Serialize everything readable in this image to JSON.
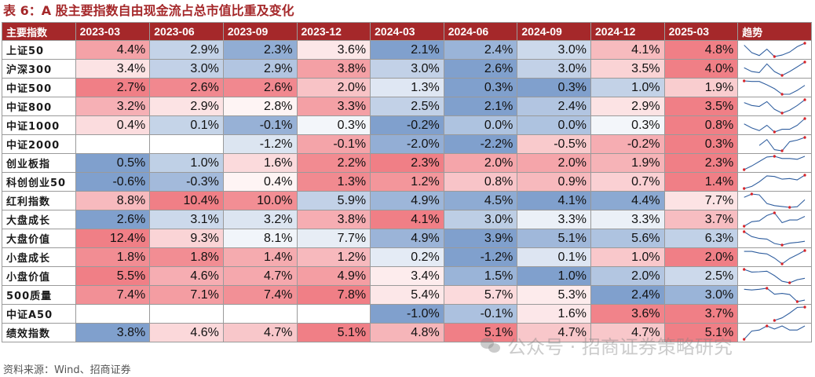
{
  "title": "表 6：A 股主要指数自由现金流占总市值比重及变化",
  "source": "资料来源：Wind、招商证券",
  "watermark": "公众号 · 招商证券策略研究",
  "watermark_icon": "wechat-icon",
  "colors": {
    "header_bg": "#a5282a",
    "positive": "#e9424c",
    "negative": "#2f64ae",
    "spark_line": "#2e5d9e",
    "spark_dot": "#d8242a"
  },
  "columns": [
    "主要指数",
    "2023-03",
    "2023-06",
    "2023-09",
    "2023-12",
    "2024-03",
    "2024-06",
    "2024-09",
    "2024-12",
    "2025-03",
    "趋势"
  ],
  "rows": [
    {
      "name": "上证50",
      "values": [
        4.4,
        2.9,
        2.3,
        3.6,
        2.1,
        2.4,
        3.0,
        4.1,
        4.8
      ],
      "labels": [
        "4.4%",
        "2.9%",
        "2.3%",
        "3.6%",
        "2.1%",
        "2.4%",
        "3.0%",
        "4.1%",
        "4.8%"
      ]
    },
    {
      "name": "沪深300",
      "values": [
        3.4,
        3.0,
        2.9,
        3.8,
        3.0,
        2.6,
        3.0,
        3.5,
        4.0
      ],
      "labels": [
        "3.4%",
        "3.0%",
        "2.9%",
        "3.8%",
        "3.0%",
        "2.6%",
        "3.0%",
        "3.5%",
        "4.0%"
      ]
    },
    {
      "name": "中证500",
      "values": [
        2.7,
        2.6,
        2.6,
        2.0,
        1.3,
        0.3,
        0.3,
        1.0,
        1.9
      ],
      "labels": [
        "2.7%",
        "2.6%",
        "2.6%",
        "2.0%",
        "1.3%",
        "0.3%",
        "0.3%",
        "1.0%",
        "1.9%"
      ]
    },
    {
      "name": "中证800",
      "values": [
        3.2,
        2.9,
        2.8,
        3.3,
        2.5,
        2.1,
        2.4,
        2.9,
        3.5
      ],
      "labels": [
        "3.2%",
        "2.9%",
        "2.8%",
        "3.3%",
        "2.5%",
        "2.1%",
        "2.4%",
        "2.9%",
        "3.5%"
      ]
    },
    {
      "name": "中证1000",
      "values": [
        0.4,
        0.1,
        -0.1,
        0.3,
        -0.2,
        0.0,
        0.0,
        0.3,
        0.8
      ],
      "labels": [
        "0.4%",
        "0.1%",
        "-0.1%",
        "0.3%",
        "-0.2%",
        "0.0%",
        "0.0%",
        "0.3%",
        "0.8%"
      ]
    },
    {
      "name": "中证2000",
      "values": [
        null,
        null,
        -1.2,
        -0.1,
        -2.0,
        -2.2,
        -0.5,
        -0.2,
        0.3
      ],
      "labels": [
        "",
        "",
        "-1.2%",
        "-0.1%",
        "-2.0%",
        "-2.2%",
        "-0.5%",
        "-0.2%",
        "0.3%"
      ]
    },
    {
      "name": "创业板指",
      "values": [
        0.5,
        1.0,
        1.6,
        2.2,
        2.3,
        2.0,
        2.0,
        1.9,
        2.3
      ],
      "labels": [
        "0.5%",
        "1.0%",
        "1.6%",
        "2.2%",
        "2.3%",
        "2.0%",
        "2.0%",
        "1.9%",
        "2.3%"
      ]
    },
    {
      "name": "科创创业50",
      "values": [
        -0.6,
        -0.3,
        0.4,
        1.3,
        1.2,
        0.8,
        0.9,
        0.7,
        1.4
      ],
      "labels": [
        "-0.6%",
        "-0.3%",
        "0.4%",
        "1.3%",
        "1.2%",
        "0.8%",
        "0.9%",
        "0.7%",
        "1.4%"
      ]
    },
    {
      "name": "红利指数",
      "values": [
        8.8,
        10.4,
        10.0,
        5.9,
        4.9,
        4.5,
        4.1,
        4.4,
        7.7
      ],
      "labels": [
        "8.8%",
        "10.4%",
        "10.0%",
        "5.9%",
        "4.9%",
        "4.5%",
        "4.1%",
        "4.4%",
        "7.7%"
      ]
    },
    {
      "name": "大盘成长",
      "values": [
        2.6,
        3.1,
        3.2,
        3.8,
        4.1,
        3.0,
        3.3,
        3.3,
        3.7
      ],
      "labels": [
        "2.6%",
        "3.1%",
        "3.2%",
        "3.8%",
        "4.1%",
        "3.0%",
        "3.3%",
        "3.3%",
        "3.7%"
      ]
    },
    {
      "name": "大盘价值",
      "values": [
        12.4,
        9.3,
        8.1,
        7.7,
        4.9,
        3.9,
        5.1,
        5.6,
        6.3
      ],
      "labels": [
        "12.4%",
        "9.3%",
        "8.1%",
        "7.7%",
        "4.9%",
        "3.9%",
        "5.1%",
        "5.6%",
        "6.3%"
      ]
    },
    {
      "name": "小盘成长",
      "values": [
        1.8,
        1.8,
        1.4,
        1.2,
        0.2,
        -1.2,
        0.1,
        1.0,
        2.0
      ],
      "labels": [
        "1.8%",
        "1.8%",
        "1.4%",
        "1.2%",
        "0.2%",
        "-1.2%",
        "0.1%",
        "1.0%",
        "2.0%"
      ]
    },
    {
      "name": "小盘价值",
      "values": [
        5.5,
        4.6,
        4.7,
        4.9,
        3.4,
        1.5,
        1.0,
        2.0,
        2.5
      ],
      "labels": [
        "5.5%",
        "4.6%",
        "4.7%",
        "4.9%",
        "3.4%",
        "1.5%",
        "1.0%",
        "2.0%",
        "2.5%"
      ]
    },
    {
      "name": "500质量",
      "values": [
        7.4,
        7.1,
        7.4,
        7.8,
        5.4,
        5.7,
        5.3,
        2.4,
        3.0
      ],
      "labels": [
        "7.4%",
        "7.1%",
        "7.4%",
        "7.8%",
        "5.4%",
        "5.7%",
        "5.3%",
        "2.4%",
        "3.0%"
      ]
    },
    {
      "name": "中证A50",
      "values": [
        null,
        null,
        null,
        null,
        -1.0,
        -0.1,
        1.6,
        3.6,
        3.7
      ],
      "labels": [
        "",
        "",
        "",
        "",
        "-1.0%",
        "-0.1%",
        "1.6%",
        "3.6%",
        "3.7%"
      ]
    },
    {
      "name": "绩效指数",
      "values": [
        3.8,
        4.6,
        4.7,
        5.1,
        4.8,
        5.1,
        4.7,
        4.7,
        5.1
      ],
      "labels": [
        "3.8%",
        "4.6%",
        "4.7%",
        "5.1%",
        "4.8%",
        "5.1%",
        "4.7%",
        "4.7%",
        "5.1%"
      ]
    }
  ]
}
